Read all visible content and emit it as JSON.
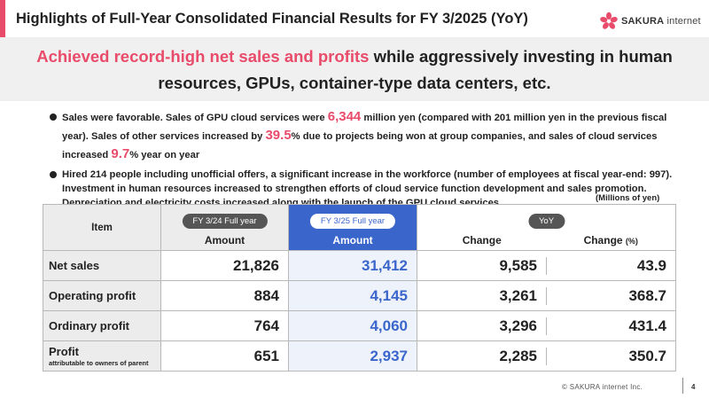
{
  "header": {
    "title": "Highlights of Full-Year Consolidated Financial Results for FY 3/2025 (YoY)",
    "logo_brand": "SAKURA",
    "logo_sub": " internet",
    "accent_color": "#e94b6a"
  },
  "banner": {
    "highlight": "Achieved record-high net sales and profits",
    "rest": " while aggressively investing in human resources, GPUs, container-type data centers, etc."
  },
  "bullets": {
    "b1": {
      "t1": "Sales were favorable. Sales of GPU cloud services were ",
      "v1": "6,344",
      "t2": " million yen (compared with 201 million yen in the previous fiscal year). Sales of other services increased by ",
      "v2": "39.5",
      "t3": "% due to projects being won at group companies, and sales of cloud services increased ",
      "v3": "9.7",
      "t4": "% year on year"
    },
    "b2": "Hired 214 people including unofficial offers, a significant increase in the workforce (number of employees at fiscal year-end: 997). Investment in human resources increased to strengthen efforts of cloud service function development and sales promotion. Depreciation and electricity costs increased along with the launch of the GPU cloud services"
  },
  "table": {
    "unit_note": "(Millions of yen)",
    "headers": {
      "item": "Item",
      "fy24_tag": "FY 3/24 Full year",
      "fy25_tag": "FY 3/25 Full year",
      "yoy_tag": "YoY",
      "amount": "Amount",
      "change": "Change",
      "change_pct": "Change",
      "pct_unit": "(%)"
    },
    "rows": [
      {
        "label": "Net sales",
        "sub": "",
        "fy24": "21,826",
        "fy25": "31,412",
        "change": "9,585",
        "pct": "43.9"
      },
      {
        "label": "Operating profit",
        "sub": "",
        "fy24": "884",
        "fy25": "4,145",
        "change": "3,261",
        "pct": "368.7"
      },
      {
        "label": "Ordinary profit",
        "sub": "",
        "fy24": "764",
        "fy25": "4,060",
        "change": "3,296",
        "pct": "431.4"
      },
      {
        "label": "Profit",
        "sub": "attributable to owners of parent",
        "fy24": "651",
        "fy25": "2,937",
        "change": "2,285",
        "pct": "350.7"
      }
    ]
  },
  "footer": {
    "copyright": "© SAKURA internet Inc.",
    "page": "4"
  }
}
